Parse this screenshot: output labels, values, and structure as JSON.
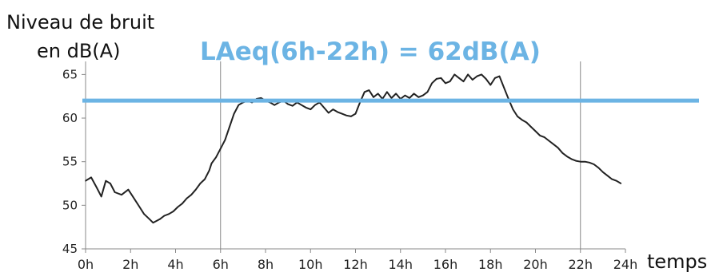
{
  "chart_data": {
    "type": "line",
    "ylabel_line1": "Niveau de bruit",
    "ylabel_line2": "en dB(A)",
    "xlabel": "temps",
    "annotation": "LAeq(6h-22h) = 62dB(A)",
    "laeq_level": 62,
    "ylim": [
      45,
      66.5
    ],
    "xlim": [
      0,
      24
    ],
    "y_ticks": [
      45,
      50,
      55,
      60,
      65
    ],
    "x_ticks": [
      {
        "value": 0,
        "label": "0h"
      },
      {
        "value": 2,
        "label": "2h"
      },
      {
        "value": 4,
        "label": "4h"
      },
      {
        "value": 6,
        "label": "6h"
      },
      {
        "value": 8,
        "label": "8h"
      },
      {
        "value": 10,
        "label": "10h"
      },
      {
        "value": 12,
        "label": "12h"
      },
      {
        "value": 14,
        "label": "14h"
      },
      {
        "value": 16,
        "label": "16h"
      },
      {
        "value": 18,
        "label": "18h"
      },
      {
        "value": 20,
        "label": "20h"
      },
      {
        "value": 22,
        "label": "22h"
      },
      {
        "value": 24,
        "label": "24h"
      }
    ],
    "reference_lines_x": [
      6,
      22
    ],
    "colors": {
      "series": "#222222",
      "laeq": "#6cb4e4",
      "axis": "#888888"
    },
    "series": [
      {
        "x": [
          0.0,
          0.25,
          0.5,
          0.7,
          0.9,
          1.1,
          1.3,
          1.6,
          1.9,
          2.1,
          2.4,
          2.6,
          2.8,
          3.0,
          3.15,
          3.3,
          3.5,
          3.7,
          3.9,
          4.1,
          4.3,
          4.5,
          4.7,
          4.9,
          5.1,
          5.3,
          5.5,
          5.6,
          5.8,
          6.0,
          6.2,
          6.4,
          6.6,
          6.8,
          7.0,
          7.2,
          7.4,
          7.6,
          7.8,
          8.0,
          8.2,
          8.4,
          8.6,
          8.8,
          9.0,
          9.2,
          9.4,
          9.6,
          9.8,
          10.0,
          10.2,
          10.4,
          10.6,
          10.8,
          11.0,
          11.2,
          11.4,
          11.6,
          11.8,
          12.0,
          12.2,
          12.4,
          12.6,
          12.8,
          13.0,
          13.2,
          13.4,
          13.6,
          13.8,
          14.0,
          14.2,
          14.4,
          14.6,
          14.8,
          15.0,
          15.2,
          15.4,
          15.6,
          15.8,
          16.0,
          16.2,
          16.4,
          16.6,
          16.8,
          17.0,
          17.2,
          17.4,
          17.6,
          17.8,
          18.0,
          18.2,
          18.4,
          18.6,
          18.8,
          19.0,
          19.2,
          19.4,
          19.6,
          19.8,
          20.0,
          20.2,
          20.4,
          20.6,
          20.8,
          21.0,
          21.2,
          21.4,
          21.6,
          21.8,
          22.0,
          22.2,
          22.4,
          22.6,
          22.8,
          23.0,
          23.2,
          23.4,
          23.6,
          23.8
        ],
        "y": [
          52.8,
          53.2,
          52.0,
          51.0,
          52.8,
          52.5,
          51.5,
          51.2,
          51.8,
          51.0,
          49.8,
          49.0,
          48.5,
          48.0,
          48.2,
          48.4,
          48.8,
          49.0,
          49.3,
          49.8,
          50.2,
          50.8,
          51.2,
          51.8,
          52.5,
          53.0,
          54.0,
          54.8,
          55.5,
          56.5,
          57.5,
          59.0,
          60.5,
          61.5,
          61.8,
          62.0,
          61.8,
          62.2,
          62.3,
          62.0,
          61.8,
          61.5,
          61.8,
          62.0,
          61.6,
          61.4,
          61.8,
          61.5,
          61.2,
          61.0,
          61.5,
          61.8,
          61.2,
          60.6,
          61.0,
          60.7,
          60.5,
          60.3,
          60.2,
          60.5,
          61.8,
          63.0,
          63.2,
          62.4,
          62.8,
          62.2,
          63.0,
          62.3,
          62.8,
          62.2,
          62.6,
          62.3,
          62.8,
          62.4,
          62.6,
          63.0,
          64.0,
          64.5,
          64.6,
          64.0,
          64.2,
          65.0,
          64.6,
          64.2,
          65.0,
          64.4,
          64.8,
          65.0,
          64.5,
          63.8,
          64.6,
          64.8,
          63.5,
          62.2,
          61.0,
          60.2,
          59.8,
          59.5,
          59.0,
          58.5,
          58.0,
          57.8,
          57.4,
          57.0,
          56.6,
          56.0,
          55.6,
          55.3,
          55.1,
          55.0,
          55.0,
          54.9,
          54.7,
          54.3,
          53.8,
          53.4,
          53.0,
          52.8,
          52.5
        ]
      }
    ]
  }
}
